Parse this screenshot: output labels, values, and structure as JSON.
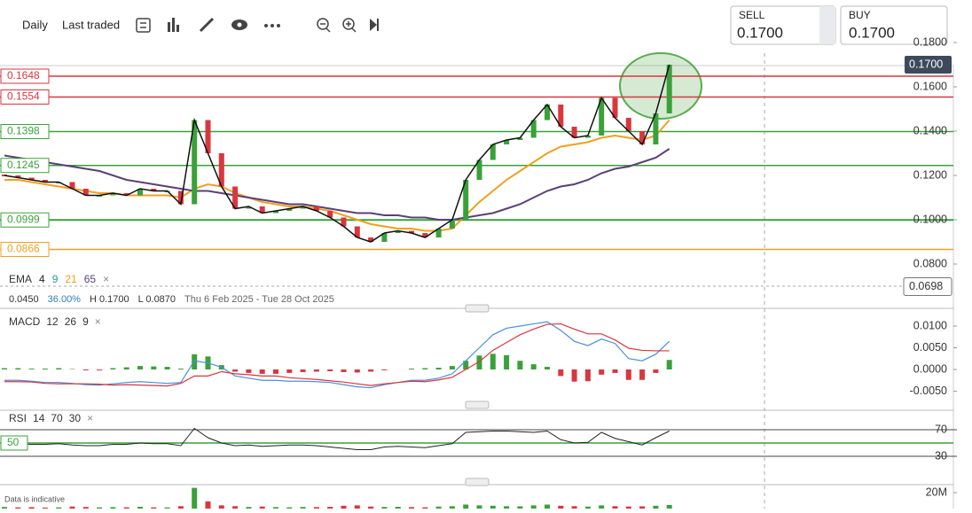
{
  "toolbar": {
    "interval": "Daily",
    "price_type": "Last traded"
  },
  "quote": {
    "sell_label": "SELL",
    "sell_price": "0.1700",
    "buy_label": "BUY",
    "buy_price": "0.1700"
  },
  "footer_note": "Data is indicative",
  "chart_data": [
    {
      "type": "candlestick",
      "name": "EMA",
      "other_periods": [
        "4",
        "9"
      ],
      "stats": {
        "change": "0.0450",
        "change_pct": "36.00%",
        "high": "H 0.1700",
        "low": "L 0.0870",
        "range": "Thu 6 Feb 2025 - Tue 28 Oct 2025"
      },
      "close": [
        0.12,
        0.119,
        0.118,
        0.117,
        0.117,
        0.114,
        0.111,
        0.111,
        0.112,
        0.111,
        0.114,
        0.113,
        0.113,
        0.107,
        0.145,
        0.13,
        0.115,
        0.105,
        0.106,
        0.103,
        0.104,
        0.105,
        0.106,
        0.104,
        0.101,
        0.097,
        0.092,
        0.09,
        0.094,
        0.095,
        0.094,
        0.092,
        0.096,
        0.1,
        0.118,
        0.127,
        0.134,
        0.136,
        0.137,
        0.145,
        0.152,
        0.142,
        0.137,
        0.138,
        0.155,
        0.146,
        0.14,
        0.134,
        0.148,
        0.17
      ],
      "up_color": "#3aa13a",
      "down_color": "#d9363e",
      "series": [
        {
          "name": "21",
          "color": "#f0a020",
          "values": [
            0.118,
            0.118,
            0.117,
            0.116,
            0.115,
            0.114,
            0.113,
            0.112,
            0.112,
            0.111,
            0.111,
            0.111,
            0.111,
            0.11,
            0.114,
            0.116,
            0.115,
            0.112,
            0.11,
            0.108,
            0.107,
            0.106,
            0.106,
            0.105,
            0.104,
            0.102,
            0.1,
            0.098,
            0.097,
            0.096,
            0.096,
            0.095,
            0.095,
            0.096,
            0.102,
            0.108,
            0.113,
            0.118,
            0.122,
            0.126,
            0.13,
            0.133,
            0.134,
            0.135,
            0.137,
            0.138,
            0.137,
            0.136,
            0.138,
            0.145
          ]
        },
        {
          "name": "65",
          "color": "#5b3f78",
          "values": [
            0.129,
            0.128,
            0.127,
            0.126,
            0.125,
            0.124,
            0.123,
            0.122,
            0.12,
            0.118,
            0.117,
            0.116,
            0.115,
            0.114,
            0.113,
            0.113,
            0.112,
            0.111,
            0.11,
            0.109,
            0.108,
            0.107,
            0.107,
            0.106,
            0.105,
            0.104,
            0.103,
            0.103,
            0.102,
            0.102,
            0.101,
            0.101,
            0.1,
            0.1,
            0.101,
            0.102,
            0.103,
            0.105,
            0.107,
            0.11,
            0.113,
            0.115,
            0.116,
            0.118,
            0.121,
            0.123,
            0.124,
            0.126,
            0.128,
            0.132
          ]
        }
      ],
      "levels": [
        {
          "value": 0.1648,
          "color": "#d9363e"
        },
        {
          "value": 0.1554,
          "color": "#d9363e"
        },
        {
          "value": 0.1398,
          "color": "#3aa13a"
        },
        {
          "value": 0.1245,
          "color": "#3aa13a"
        },
        {
          "value": 0.0999,
          "color": "#3aa13a"
        },
        {
          "value": 0.0866,
          "color": "#f0a020"
        }
      ],
      "last_price": {
        "value": 0.17,
        "label": "0.1700"
      },
      "crosshair": {
        "value": 0.0698,
        "label": "0.0698"
      },
      "ylim": [
        0.06,
        0.175
      ],
      "yticks": [
        {
          "value": 0.18,
          "label": "0.1800"
        },
        {
          "value": 0.16,
          "label": "0.1600"
        },
        {
          "value": 0.14,
          "label": "0.1400"
        },
        {
          "value": 0.12,
          "label": "0.1200"
        },
        {
          "value": 0.1,
          "label": "0.1000"
        },
        {
          "value": 0.08,
          "label": "0.0800"
        }
      ]
    },
    {
      "type": "macd",
      "name": "MACD",
      "params": [
        "12",
        "26",
        "9"
      ],
      "histogram": [
        0.0003,
        0.0003,
        0.0002,
        0.0002,
        0.0003,
        0.0001,
        -0.0002,
        -0.0002,
        0.0003,
        0.0005,
        0.0008,
        0.0007,
        0.0006,
        0.0002,
        0.0035,
        0.003,
        0.001,
        -0.0005,
        -0.0008,
        -0.001,
        -0.001,
        -0.0008,
        -0.0006,
        -0.0005,
        -0.0004,
        -0.0006,
        -0.0007,
        -0.0005,
        -0.0002,
        0.0,
        0.0002,
        0.0003,
        0.0004,
        0.0008,
        0.002,
        0.0032,
        0.0036,
        0.0033,
        0.002,
        0.0012,
        0.0006,
        -0.0015,
        -0.0028,
        -0.0027,
        -0.0012,
        -0.0008,
        -0.0024,
        -0.0024,
        -0.0008,
        0.0022
      ],
      "up_color": "#3aa13a",
      "down_color": "#d9363e",
      "series": [
        {
          "color": "#4a90d9",
          "values": [
            -0.0025,
            -0.0025,
            -0.0027,
            -0.003,
            -0.003,
            -0.0032,
            -0.0035,
            -0.0036,
            -0.0033,
            -0.003,
            -0.0028,
            -0.003,
            -0.0032,
            -0.003,
            0.002,
            0.0015,
            0.0005,
            -0.0015,
            -0.002,
            -0.0025,
            -0.0025,
            -0.0027,
            -0.0027,
            -0.0028,
            -0.003,
            -0.0035,
            -0.004,
            -0.0042,
            -0.0035,
            -0.003,
            -0.0025,
            -0.0025,
            -0.002,
            -0.001,
            0.002,
            0.005,
            0.008,
            0.0095,
            0.01,
            0.0105,
            0.011,
            0.009,
            0.0065,
            0.0055,
            0.007,
            0.006,
            0.0025,
            0.002,
            0.0035,
            0.0065
          ]
        },
        {
          "color": "#d9363e",
          "values": [
            -0.0028,
            -0.0028,
            -0.0029,
            -0.0032,
            -0.0033,
            -0.0033,
            -0.0033,
            -0.0034,
            -0.0036,
            -0.0035,
            -0.0036,
            -0.0037,
            -0.0038,
            -0.0032,
            -0.0015,
            -0.0015,
            -0.0005,
            -0.001,
            -0.0012,
            -0.0015,
            -0.0015,
            -0.0019,
            -0.0021,
            -0.0023,
            -0.0026,
            -0.0029,
            -0.0033,
            -0.0037,
            -0.0033,
            -0.003,
            -0.0027,
            -0.0028,
            -0.0024,
            -0.0018,
            0.0,
            0.0018,
            0.0044,
            0.0062,
            0.008,
            0.0093,
            0.0104,
            0.0105,
            0.0093,
            0.0082,
            0.0082,
            0.0068,
            0.0049,
            0.0044,
            0.0043,
            0.0043
          ]
        }
      ],
      "ylim": [
        -0.009,
        0.013
      ],
      "yticks": [
        {
          "value": 0.01,
          "label": "0.0100"
        },
        {
          "value": 0.005,
          "label": "0.0050"
        },
        {
          "value": 0,
          "label": "0.0000"
        },
        {
          "value": -0.005,
          "label": "-0.0050"
        }
      ]
    },
    {
      "type": "rsi",
      "name": "RSI",
      "params": [
        "14",
        "70",
        "30"
      ],
      "values": [
        50,
        49,
        48,
        48,
        49,
        47,
        46,
        46,
        48,
        48,
        50,
        49,
        49,
        46,
        72,
        58,
        50,
        46,
        47,
        45,
        46,
        47,
        47,
        46,
        44,
        42,
        40,
        40,
        44,
        45,
        44,
        43,
        46,
        49,
        66,
        67,
        68,
        68,
        67,
        66,
        68,
        55,
        50,
        51,
        66,
        57,
        52,
        47,
        58,
        68
      ],
      "color": "#222",
      "ylim": [
        0,
        100
      ],
      "yticks": [
        70,
        30
      ],
      "midline": 50
    },
    {
      "type": "volume",
      "values": [
        2000000,
        1500000,
        1800000,
        1200000,
        1500000,
        2500000,
        2000000,
        1500000,
        1800000,
        1600000,
        2200000,
        1500000,
        1400000,
        3000000,
        26000000,
        9000000,
        4000000,
        3000000,
        2000000,
        2500000,
        1800000,
        1600000,
        2000000,
        1800000,
        2200000,
        3500000,
        4000000,
        2500000,
        2000000,
        2200000,
        1800000,
        1600000,
        2500000,
        3000000,
        5000000,
        4000000,
        3500000,
        3000000,
        2800000,
        4000000,
        5000000,
        3500000,
        3000000,
        2500000,
        4000000,
        3000000,
        2500000,
        2800000,
        3500000,
        4500000
      ],
      "up_color": "#3aa13a",
      "down_color": "#d9363e",
      "ylim": [
        0,
        20000000
      ],
      "yticks": [
        {
          "value": 20000000,
          "label": "20M"
        }
      ]
    }
  ]
}
